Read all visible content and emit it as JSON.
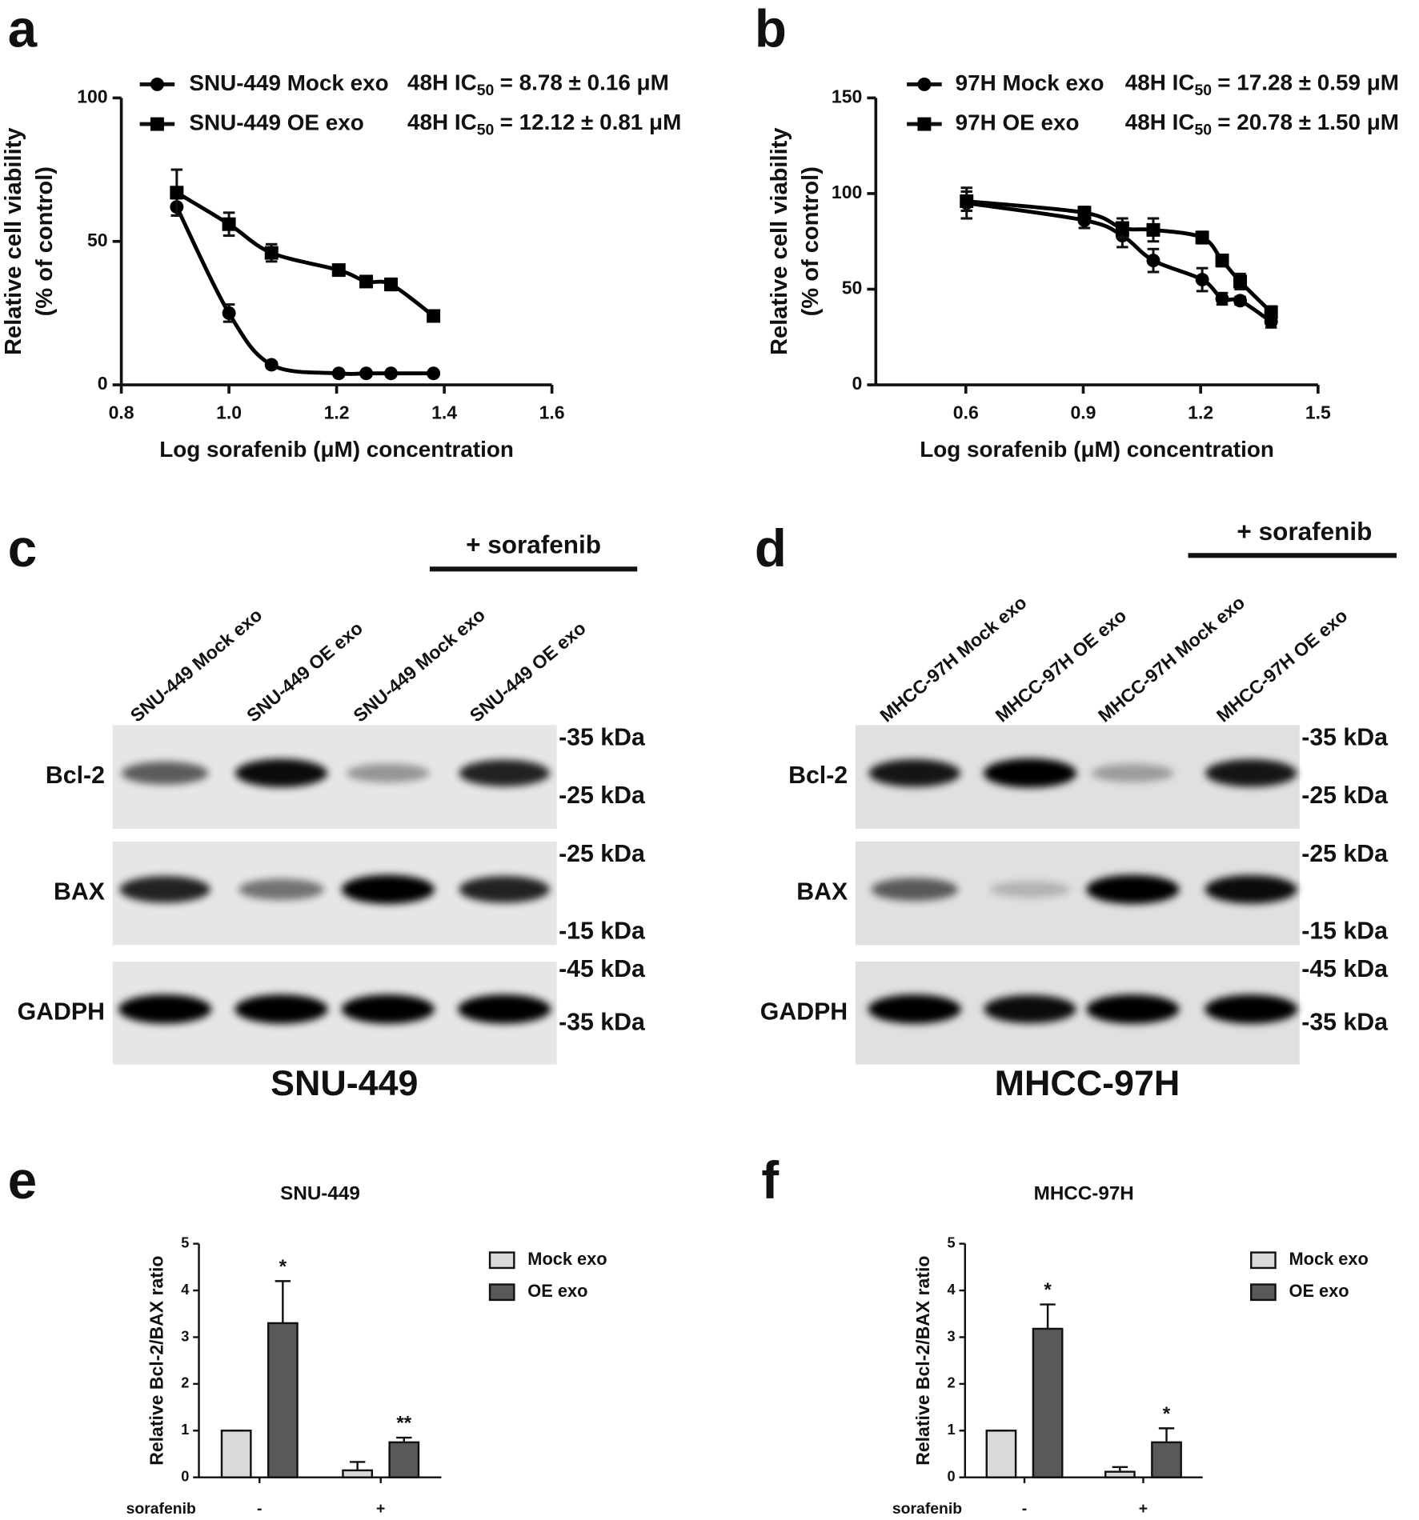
{
  "chart_data": [
    {
      "type": "line",
      "panel_label": "a",
      "x": [
        0.903,
        1.0,
        1.079,
        1.204,
        1.255,
        1.301,
        1.38
      ],
      "series": [
        {
          "name": "SNU-449 Mock exo",
          "marker": "circle",
          "color": "#000000",
          "values": [
            62,
            25,
            7,
            4,
            4,
            4,
            4
          ],
          "errors": [
            3,
            3,
            1,
            0.5,
            0.5,
            0.5,
            0.5
          ],
          "ic50": {
            "prefix": "48H IC",
            "sub": "50",
            "suffix": "= 8.78 ± 0.16 μM"
          }
        },
        {
          "name": "SNU-449 OE exo",
          "marker": "square",
          "color": "#000000",
          "values": [
            67,
            56,
            46,
            40,
            36,
            35,
            24
          ],
          "errors": [
            8,
            4,
            3,
            1,
            1,
            2,
            1
          ],
          "ic50": {
            "prefix": "48H IC",
            "sub": "50",
            "suffix": "= 12.12 ± 0.81 μM"
          }
        }
      ],
      "xlabel": "Log sorafenib (μM) concentration",
      "ylabel": [
        "Relative cell viability",
        "(% of control)"
      ],
      "xlim": [
        0.8,
        1.6
      ],
      "xticks": [
        0.8,
        {
          "value": 1.0,
          "label": "1.0"
        },
        1.2,
        1.4,
        1.6
      ],
      "ylim": [
        0,
        100
      ],
      "yticks": [
        0,
        50,
        100
      ]
    },
    {
      "type": "line",
      "panel_label": "b",
      "x": [
        0.602,
        0.903,
        1.0,
        1.079,
        1.204,
        1.255,
        1.301,
        1.38
      ],
      "series": [
        {
          "name": "97H Mock exo",
          "marker": "circle",
          "color": "#000000",
          "values": [
            95,
            86,
            78,
            65,
            55,
            45,
            44,
            33
          ],
          "errors": [
            8,
            4,
            6,
            6,
            6,
            3,
            2,
            3
          ],
          "ic50": {
            "prefix": "48H IC",
            "sub": "50",
            "suffix": "= 17.28 ± 0.59 μM"
          }
        },
        {
          "name": "97H OE exo",
          "marker": "square",
          "color": "#000000",
          "values": [
            96,
            90,
            82,
            81,
            77,
            65,
            54,
            38
          ],
          "errors": [
            5,
            3,
            5,
            6,
            3,
            3,
            4,
            3
          ],
          "ic50": {
            "prefix": "48H IC",
            "sub": "50",
            "suffix": "= 20.78 ± 1.50 μM"
          }
        }
      ],
      "xlabel": "Log sorafenib (μM) concentration",
      "ylabel": [
        "Relative cell viability",
        "(% of control)"
      ],
      "xlim": [
        0.37,
        1.5
      ],
      "xticks": [
        0.6,
        0.9,
        1.2,
        1.5
      ],
      "ylim": [
        0,
        150
      ],
      "yticks": [
        0,
        50,
        100,
        150
      ]
    },
    {
      "type": "bar",
      "panel_label": "e",
      "title": "SNU-449",
      "categories": [
        "-",
        "+"
      ],
      "xlabel": "sorafenib",
      "series": [
        {
          "name": "Mock exo",
          "color": "#d9d9d9",
          "values": [
            1,
            0.15
          ],
          "errors": [
            0,
            0.18
          ]
        },
        {
          "name": "OE exo",
          "color": "#595959",
          "values": [
            3.3,
            0.75
          ],
          "errors": [
            0.9,
            0.1
          ],
          "significance": [
            "*",
            "**"
          ]
        }
      ],
      "ylabel": "Relative Bcl-2/BAX ratio",
      "ylim": [
        0,
        5
      ],
      "yticks": [
        0,
        1,
        2,
        3,
        4,
        5
      ]
    },
    {
      "type": "bar",
      "panel_label": "f",
      "title": "MHCC-97H",
      "categories": [
        "-",
        "+"
      ],
      "xlabel": "sorafenib",
      "series": [
        {
          "name": "Mock exo",
          "color": "#d9d9d9",
          "values": [
            1,
            0.12
          ],
          "errors": [
            0,
            0.1
          ]
        },
        {
          "name": "OE exo",
          "color": "#595959",
          "values": [
            3.18,
            0.75
          ],
          "errors": [
            0.52,
            0.3
          ],
          "significance": [
            "*",
            "*"
          ]
        }
      ],
      "ylabel": "Relative Bcl-2/BAX ratio",
      "ylim": [
        0,
        5
      ],
      "yticks": [
        0,
        1,
        2,
        3,
        4,
        5
      ]
    }
  ],
  "blots": [
    {
      "panel_label": "c",
      "treatment": "+ sorafenib",
      "cell_line": "SNU-449",
      "lanes": [
        "SNU-449 Mock exo",
        "SNU-449 OE exo",
        "SNU-449 Mock exo",
        "SNU-449 OE  exo"
      ],
      "rows": [
        {
          "name": "Bcl-2",
          "markers": [
            "-35 kDa",
            "-25 kDa"
          ]
        },
        {
          "name": "BAX",
          "markers": [
            "-25 kDa",
            "-15 kDa"
          ]
        },
        {
          "name": "GADPH",
          "markers": [
            "-45 kDa",
            "-35 kDa"
          ]
        }
      ]
    },
    {
      "panel_label": "d",
      "treatment": "+ sorafenib",
      "cell_line": "MHCC-97H",
      "lanes": [
        "MHCC-97H Mock exo",
        "MHCC-97H OE exo",
        "MHCC-97H Mock exo",
        "MHCC-97H OE exo"
      ],
      "rows": [
        {
          "name": "Bcl-2",
          "markers": [
            "-35 kDa",
            "-25 kDa"
          ]
        },
        {
          "name": "BAX",
          "markers": [
            "-25 kDa",
            "-15 kDa"
          ]
        },
        {
          "name": "GADPH",
          "markers": [
            "-45 kDa",
            "-35 kDa"
          ]
        }
      ]
    }
  ]
}
